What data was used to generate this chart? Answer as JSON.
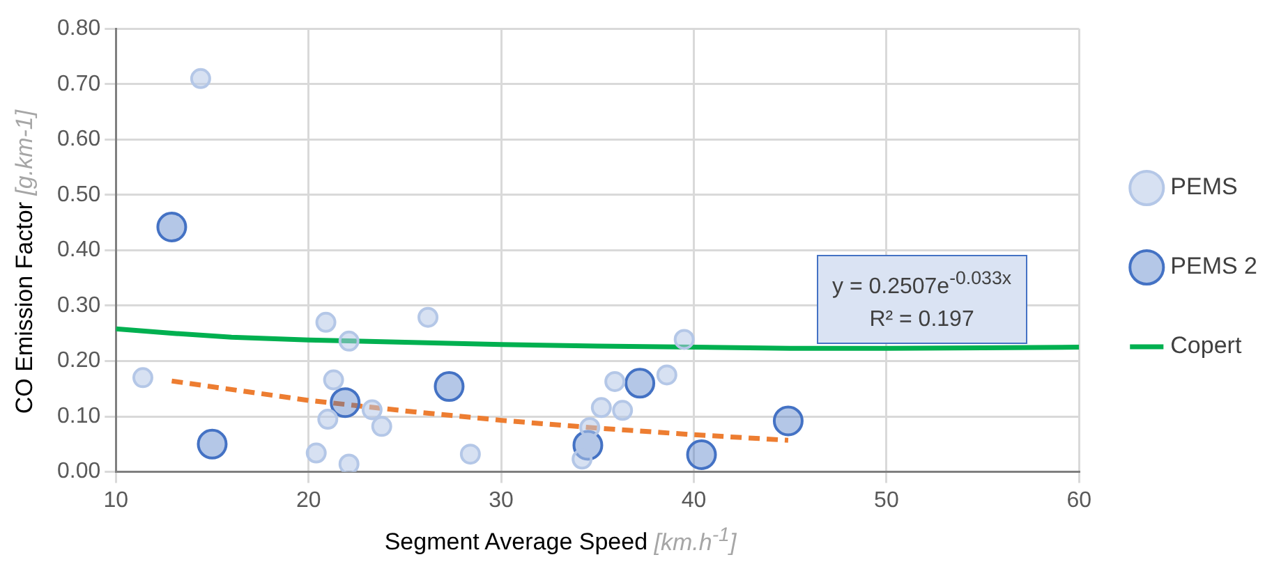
{
  "chart_data": {
    "type": "scatter",
    "xlabel": "Segment Average Speed [km.h$^{-1}$]",
    "ylabel": "CO Emission Factor [g.km-1]",
    "xlim": [
      10,
      60
    ],
    "xticks": [
      10,
      20,
      30,
      40,
      50,
      60
    ],
    "ylim": [
      0,
      0.8
    ],
    "yticks": [
      {
        "value": 0,
        "label": "0.00"
      },
      {
        "value": 0.1,
        "label": "0.10"
      },
      {
        "value": 0.2,
        "label": "0.20"
      },
      {
        "value": 0.3,
        "label": "0.30"
      },
      {
        "value": 0.4,
        "label": "0.40"
      },
      {
        "value": 0.5,
        "label": "0.50"
      },
      {
        "value": 0.6,
        "label": "0.60"
      },
      {
        "value": 0.7,
        "label": "0.70"
      },
      {
        "value": 0.8,
        "label": "0.80"
      }
    ],
    "grid": true,
    "legend": "right",
    "marker": "circle",
    "annotations": [
      "y = 0.2507e$^{-0.033x}$",
      "R² = 0.197"
    ],
    "series": [
      {
        "name": "Copert",
        "type": "line",
        "color": "#00b050",
        "marker": "none",
        "x": [
          10,
          13,
          16,
          20,
          25,
          30,
          35,
          40,
          45,
          50,
          55,
          60
        ],
        "values": [
          0.258,
          0.25,
          0.243,
          0.238,
          0.234,
          0.23,
          0.227,
          0.225,
          0.223,
          0.223,
          0.224,
          0.225
        ]
      },
      {
        "name": "PEMS",
        "color": "#b4c7e7",
        "x": [
          14.4,
          11.4,
          20.9,
          22.1,
          26.2,
          21.3,
          23.3,
          21.0,
          23.8,
          20.4,
          22.1,
          28.4,
          39.5,
          35.9,
          38.6,
          35.2,
          36.3,
          34.6,
          34.2
        ],
        "values": [
          0.71,
          0.17,
          0.27,
          0.236,
          0.279,
          0.166,
          0.112,
          0.095,
          0.082,
          0.034,
          0.014,
          0.032,
          0.239,
          0.163,
          0.175,
          0.116,
          0.111,
          0.08,
          0.023
        ]
      },
      {
        "name": "PEMS 2",
        "color": "#4472c4",
        "x": [
          12.9,
          15.0,
          21.9,
          27.3,
          37.2,
          34.5,
          40.4,
          44.9
        ],
        "values": [
          0.442,
          0.05,
          0.125,
          0.154,
          0.16,
          0.048,
          0.031,
          0.092
        ]
      },
      {
        "type": "line",
        "color": "#ed7d31",
        "marker": "none",
        "line_style": "dashed",
        "x": [
          12.9,
          20,
          25,
          30,
          35,
          40,
          44.9
        ],
        "values": [
          0.164,
          0.129,
          0.11,
          0.093,
          0.079,
          0.067,
          0.057
        ]
      }
    ]
  }
}
